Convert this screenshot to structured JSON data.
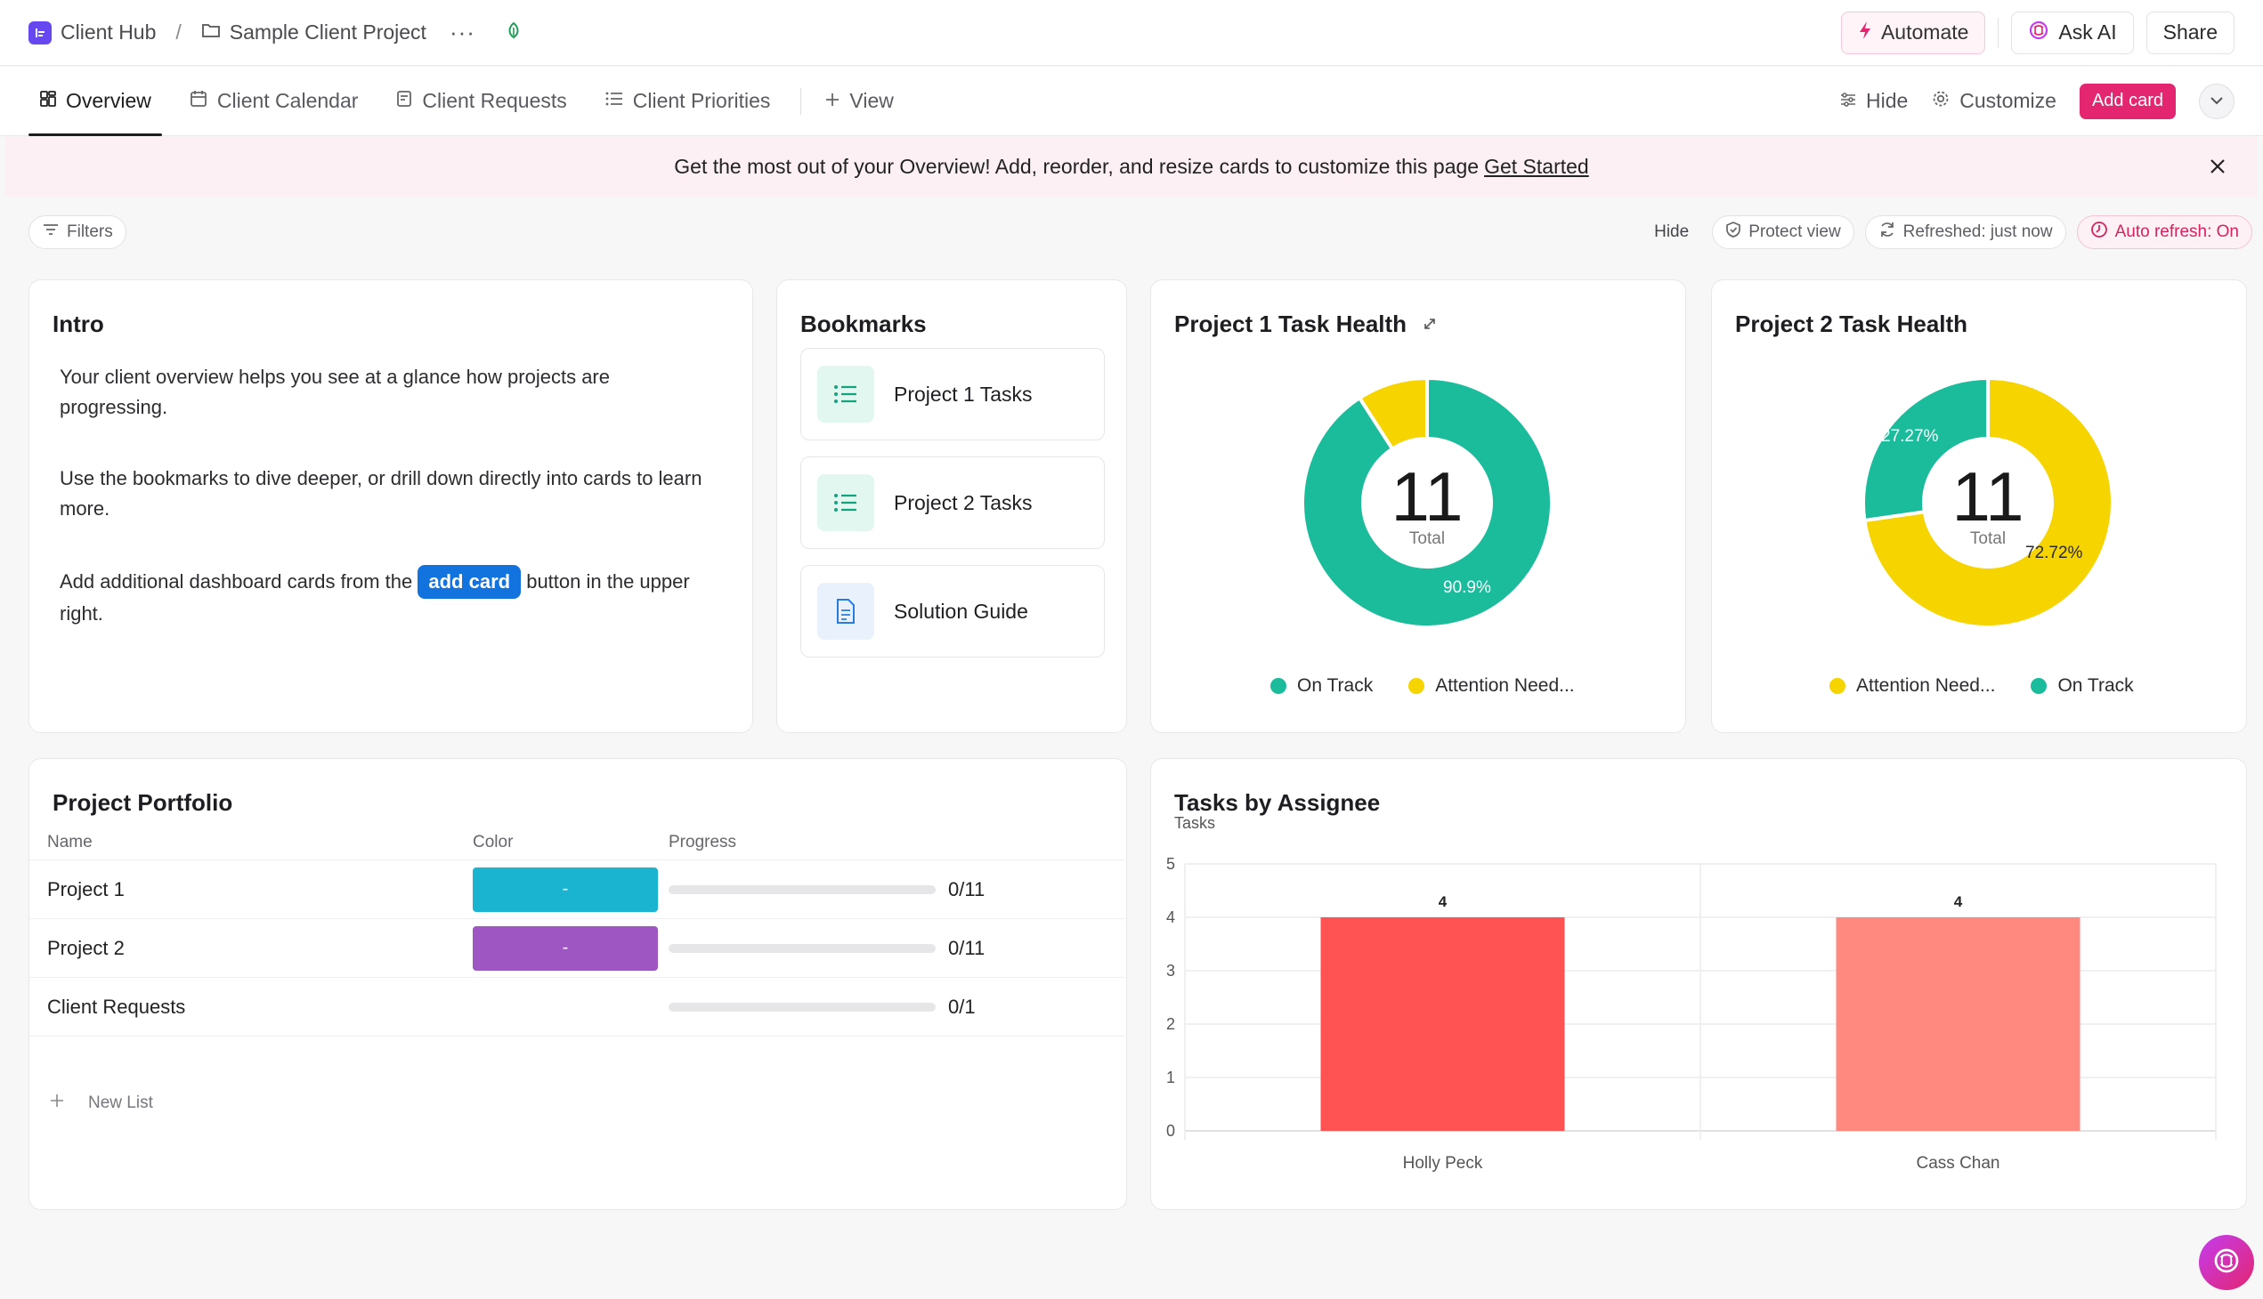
{
  "header": {
    "app_name": "Client Hub",
    "crumb_sep": "/",
    "project_name": "Sample Client Project",
    "more": "···",
    "automate_label": "Automate",
    "ask_ai_label": "Ask AI",
    "share_label": "Share"
  },
  "tabs": {
    "items": [
      {
        "label": "Overview",
        "icon": "dashboard-icon",
        "active": true
      },
      {
        "label": "Client Calendar",
        "icon": "calendar-icon"
      },
      {
        "label": "Client Requests",
        "icon": "form-icon"
      },
      {
        "label": "Client Priorities",
        "icon": "list-icon"
      }
    ],
    "add_view_label": "View",
    "hide_label": "Hide",
    "customize_label": "Customize",
    "add_card_label": "Add card"
  },
  "banner": {
    "text": "Get the most out of your Overview! Add, reorder, and resize cards to customize this page",
    "link": "Get Started"
  },
  "filters": {
    "filters_label": "Filters",
    "hide_label": "Hide",
    "protect_label": "Protect view",
    "refreshed_label": "Refreshed: just now",
    "auto_refresh_label": "Auto refresh: On"
  },
  "intro": {
    "title": "Intro",
    "p1": "Your client overview helps you see at a glance how projects are progressing.",
    "p2": "Use the bookmarks to dive deeper, or drill down directly into cards to learn more.",
    "p3_before": "Add additional dashboard cards from the",
    "p3_pill": "add card",
    "p3_after": "button in the upper right."
  },
  "bookmarks": {
    "title": "Bookmarks",
    "items": [
      {
        "label": "Project 1 Tasks",
        "icon": "list-icon"
      },
      {
        "label": "Project 2 Tasks",
        "icon": "list-icon"
      },
      {
        "label": "Solution Guide",
        "icon": "document-icon"
      }
    ]
  },
  "health1": {
    "title": "Project 1 Task Health",
    "total": "11",
    "total_label": "Total",
    "legend": [
      "On Track",
      "Attention Need..."
    ],
    "pct_main": "90.9%"
  },
  "health2": {
    "title": "Project 2 Task Health",
    "total": "11",
    "total_label": "Total",
    "legend": [
      "Attention Need...",
      "On Track"
    ],
    "pct_a": "27.27%",
    "pct_b": "72.72%"
  },
  "portfolio": {
    "title": "Project Portfolio",
    "columns": [
      "Name",
      "Color",
      "Progress"
    ],
    "rows": [
      {
        "name": "Project 1",
        "color": "#1ab3d0",
        "swatch_text": "-",
        "progress": "0/11",
        "progress_value": 0
      },
      {
        "name": "Project 2",
        "color": "#9d56c2",
        "swatch_text": "-",
        "progress": "0/11",
        "progress_value": 0
      },
      {
        "name": "Client Requests",
        "color": "",
        "swatch_text": "",
        "progress": "0/1",
        "progress_value": 0
      }
    ],
    "new_list_label": "New List"
  },
  "chart_data": [
    {
      "type": "pie",
      "title": "Project 1 Task Health",
      "categories": [
        "On Track",
        "Attention Need..."
      ],
      "values": [
        90.9,
        9.1
      ],
      "colors": [
        "#1abc9c",
        "#f6d400"
      ],
      "center_value": 11,
      "center_label": "Total",
      "legend_position": "bottom"
    },
    {
      "type": "pie",
      "title": "Project 2 Task Health",
      "categories": [
        "Attention Need...",
        "On Track"
      ],
      "values": [
        72.72,
        27.27
      ],
      "colors": [
        "#f6d400",
        "#1abc9c"
      ],
      "center_value": 11,
      "center_label": "Total",
      "legend_position": "bottom"
    },
    {
      "type": "bar",
      "title": "Tasks by Assignee",
      "ylabel": "Tasks",
      "categories": [
        "Holly Peck",
        "Cass Chan"
      ],
      "values": [
        4,
        4
      ],
      "colors": [
        "#ff5252",
        "#ff887f"
      ],
      "ylim": [
        0,
        5
      ],
      "yticks": [
        0,
        1,
        2,
        3,
        4,
        5
      ],
      "grid": true
    }
  ]
}
